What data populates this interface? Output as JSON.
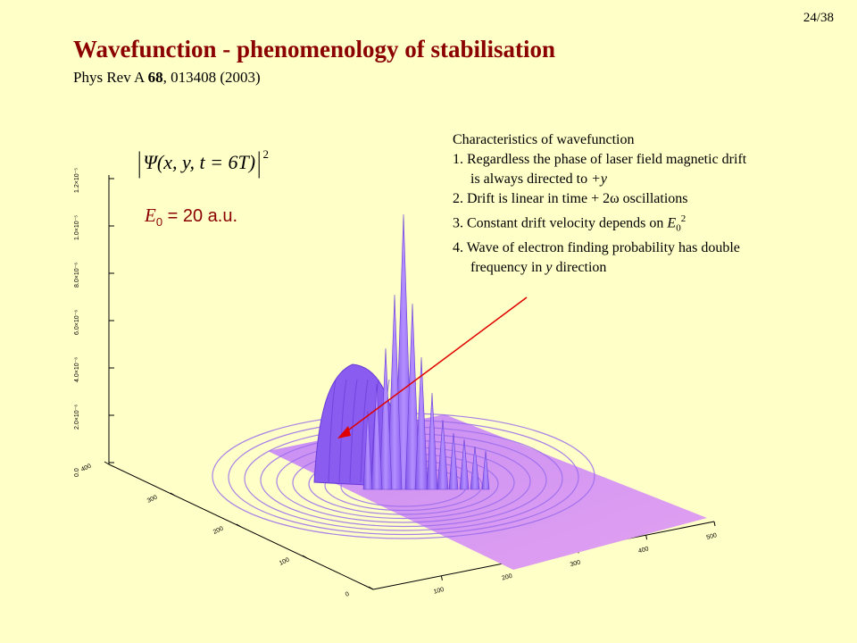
{
  "slide": {
    "number": "24/38"
  },
  "header": {
    "title": "Wavefunction - phenomenology of stabilisation",
    "reference_prefix": "Phys Rev A ",
    "reference_volume": "68",
    "reference_suffix": ", 013408 (2003)"
  },
  "formula": {
    "psi": "Ψ(x, y, t = 6T)",
    "power": "2"
  },
  "field": {
    "symbol": "E",
    "subscript": "0",
    "value": " = 20 a.u."
  },
  "characteristics": {
    "heading": "Characteristics of wavefunction",
    "items": [
      {
        "prefix": "1. Regardless the phase of laser field magnetic drift",
        "continuation": "is always directed to ",
        "em": "+y"
      },
      {
        "text": "2. Drift is linear in time + 2ω oscillations"
      },
      {
        "prefix": "3. Constant drift velocity depends on ",
        "em": "E",
        "sub": "0",
        "sup": "2"
      },
      {
        "prefix": "4. Wave of electron finding probability has double",
        "continuation": "frequency in ",
        "em": "y",
        "continuation_suffix": " direction"
      }
    ]
  },
  "plot": {
    "z_ticks": [
      "0.0",
      "2.0×10⁻⁶",
      "4.0×10⁻⁶",
      "6.0×10⁻⁶",
      "8.0×10⁻⁶",
      "1.0×10⁻⁵",
      "1.2×10⁻⁵"
    ],
    "y_ticks": [
      "0",
      "100",
      "200",
      "300",
      "400"
    ],
    "x_ticks": [
      "100",
      "200",
      "300",
      "400",
      "500"
    ],
    "surface_color": "#A070F8",
    "floor_color": "#D08CF0",
    "arrow_color": "#E00000"
  }
}
